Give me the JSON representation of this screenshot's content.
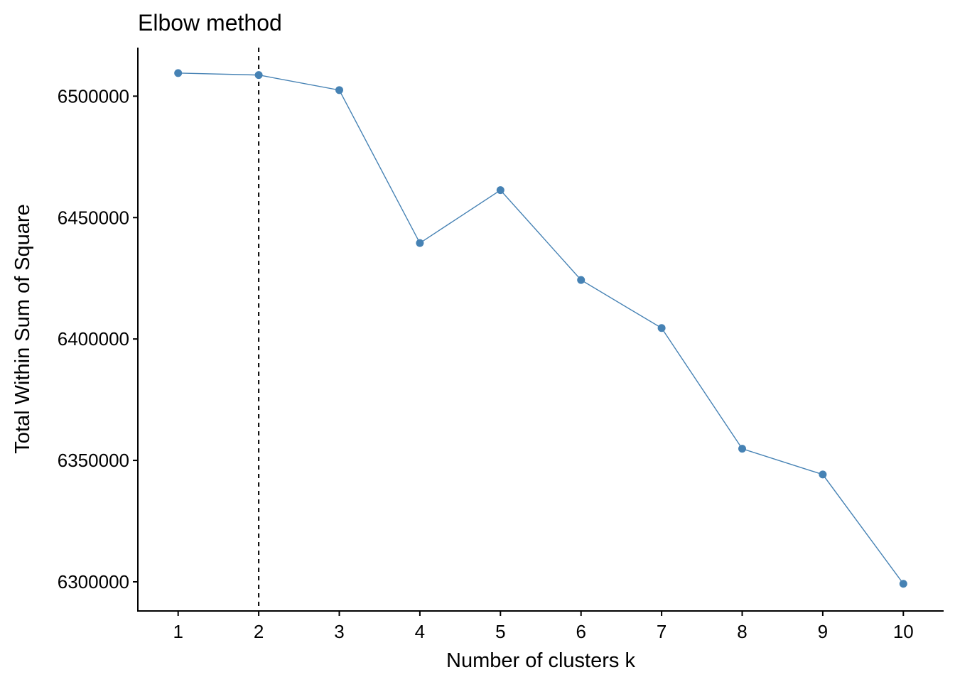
{
  "chart_data": {
    "type": "line",
    "title": "Elbow method",
    "xlabel": "Number of clusters k",
    "ylabel": "Total Within Sum of Square",
    "x": [
      1,
      2,
      3,
      4,
      5,
      6,
      7,
      8,
      9,
      10
    ],
    "x_tick_labels": [
      "1",
      "2",
      "3",
      "4",
      "5",
      "6",
      "7",
      "8",
      "9",
      "10"
    ],
    "series": [
      {
        "values": [
          6509500,
          6508700,
          6502500,
          6439500,
          6461300,
          6424300,
          6404500,
          6354800,
          6344200,
          6299200
        ],
        "color": "#4682B4"
      }
    ],
    "xlim": [
      0.5,
      10.5
    ],
    "ylim": [
      6288000,
      6520000
    ],
    "y_ticks": [
      6300000,
      6350000,
      6400000,
      6450000,
      6500000
    ],
    "y_tick_labels": [
      "6300000",
      "6350000",
      "6400000",
      "6450000",
      "6500000"
    ],
    "reference_line": {
      "x": 2,
      "style": "dashed",
      "color": "#000000"
    },
    "grid": false,
    "legend": "none"
  }
}
